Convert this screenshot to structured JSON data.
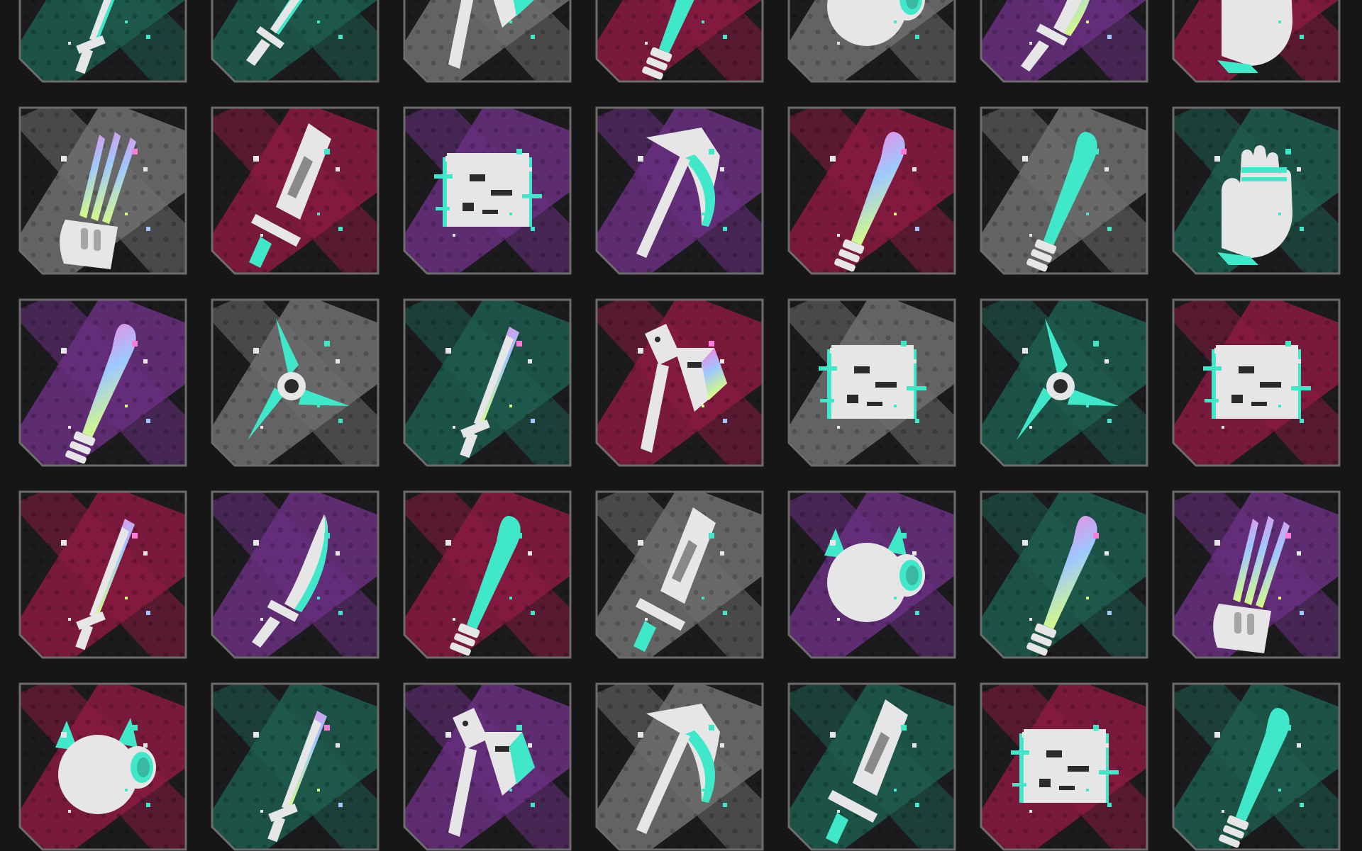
{
  "grid": {
    "rows": 5,
    "cols": 7
  },
  "palette": {
    "background": "#161616",
    "tile_base": "#1b1b1d",
    "tile_border": "#6c6c6c",
    "icon_fill": "#e6e6e6",
    "icon_dark": "#2b2b2b",
    "colorways": {
      "teal": "#1d5c4e",
      "magenta": "#8a1a42",
      "purple": "#6a2f80",
      "gray": "#707070"
    },
    "accents": {
      "mint": "#3ee8c8",
      "iridescent": [
        "#ff7ad9",
        "#9ec8ff",
        "#d8ff7a"
      ]
    }
  },
  "tiles": [
    {
      "row": 0,
      "col": 0,
      "icon": "katana-icon",
      "colorway": "teal",
      "accent": "mint"
    },
    {
      "row": 0,
      "col": 1,
      "icon": "sword-icon",
      "colorway": "teal",
      "accent": "mint"
    },
    {
      "row": 0,
      "col": 2,
      "icon": "axe-icon",
      "colorway": "gray",
      "accent": "mint"
    },
    {
      "row": 0,
      "col": 3,
      "icon": "bat-icon",
      "colorway": "magenta",
      "accent": "mint"
    },
    {
      "row": 0,
      "col": 4,
      "icon": "helmet-icon",
      "colorway": "gray",
      "accent": "mint"
    },
    {
      "row": 0,
      "col": 5,
      "icon": "knife-icon",
      "colorway": "purple",
      "accent": "iridescent"
    },
    {
      "row": 0,
      "col": 6,
      "icon": "gauntlet-icon",
      "colorway": "magenta",
      "accent": "mint"
    },
    {
      "row": 1,
      "col": 0,
      "icon": "claws-icon",
      "colorway": "gray",
      "accent": "iridescent"
    },
    {
      "row": 1,
      "col": 1,
      "icon": "cleaver-icon",
      "colorway": "magenta",
      "accent": "mint"
    },
    {
      "row": 1,
      "col": 2,
      "icon": "glitch-block-icon",
      "colorway": "purple",
      "accent": "mint"
    },
    {
      "row": 1,
      "col": 3,
      "icon": "scythe-icon",
      "colorway": "purple",
      "accent": "mint"
    },
    {
      "row": 1,
      "col": 4,
      "icon": "bat-icon",
      "colorway": "magenta",
      "accent": "iridescent"
    },
    {
      "row": 1,
      "col": 5,
      "icon": "bat-icon",
      "colorway": "gray",
      "accent": "mint"
    },
    {
      "row": 1,
      "col": 6,
      "icon": "gauntlet-icon",
      "colorway": "teal",
      "accent": "mint"
    },
    {
      "row": 2,
      "col": 0,
      "icon": "bat-icon",
      "colorway": "purple",
      "accent": "iridescent"
    },
    {
      "row": 2,
      "col": 1,
      "icon": "shuriken-icon",
      "colorway": "gray",
      "accent": "mint"
    },
    {
      "row": 2,
      "col": 2,
      "icon": "katana-icon",
      "colorway": "teal",
      "accent": "iridescent"
    },
    {
      "row": 2,
      "col": 3,
      "icon": "axe-icon",
      "colorway": "magenta",
      "accent": "iridescent"
    },
    {
      "row": 2,
      "col": 4,
      "icon": "glitch-block-icon",
      "colorway": "gray",
      "accent": "mint"
    },
    {
      "row": 2,
      "col": 5,
      "icon": "shuriken-icon",
      "colorway": "teal",
      "accent": "mint"
    },
    {
      "row": 2,
      "col": 6,
      "icon": "glitch-block-icon",
      "colorway": "magenta",
      "accent": "mint"
    },
    {
      "row": 3,
      "col": 0,
      "icon": "katana-icon",
      "colorway": "magenta",
      "accent": "iridescent"
    },
    {
      "row": 3,
      "col": 1,
      "icon": "knife-icon",
      "colorway": "purple",
      "accent": "mint"
    },
    {
      "row": 3,
      "col": 2,
      "icon": "bat-icon",
      "colorway": "magenta",
      "accent": "mint"
    },
    {
      "row": 3,
      "col": 3,
      "icon": "cleaver-icon",
      "colorway": "gray",
      "accent": "mint"
    },
    {
      "row": 3,
      "col": 4,
      "icon": "helmet-icon",
      "colorway": "purple",
      "accent": "mint"
    },
    {
      "row": 3,
      "col": 5,
      "icon": "bat-icon",
      "colorway": "teal",
      "accent": "iridescent"
    },
    {
      "row": 3,
      "col": 6,
      "icon": "claws-icon",
      "colorway": "purple",
      "accent": "iridescent"
    },
    {
      "row": 4,
      "col": 0,
      "icon": "helmet-icon",
      "colorway": "magenta",
      "accent": "mint"
    },
    {
      "row": 4,
      "col": 1,
      "icon": "katana-icon",
      "colorway": "teal",
      "accent": "iridescent"
    },
    {
      "row": 4,
      "col": 2,
      "icon": "axe-icon",
      "colorway": "purple",
      "accent": "mint"
    },
    {
      "row": 4,
      "col": 3,
      "icon": "scythe-icon",
      "colorway": "gray",
      "accent": "mint"
    },
    {
      "row": 4,
      "col": 4,
      "icon": "cleaver-icon",
      "colorway": "teal",
      "accent": "mint"
    },
    {
      "row": 4,
      "col": 5,
      "icon": "glitch-block-icon",
      "colorway": "magenta",
      "accent": "mint"
    },
    {
      "row": 4,
      "col": 6,
      "icon": "bat-icon",
      "colorway": "teal",
      "accent": "mint"
    }
  ]
}
